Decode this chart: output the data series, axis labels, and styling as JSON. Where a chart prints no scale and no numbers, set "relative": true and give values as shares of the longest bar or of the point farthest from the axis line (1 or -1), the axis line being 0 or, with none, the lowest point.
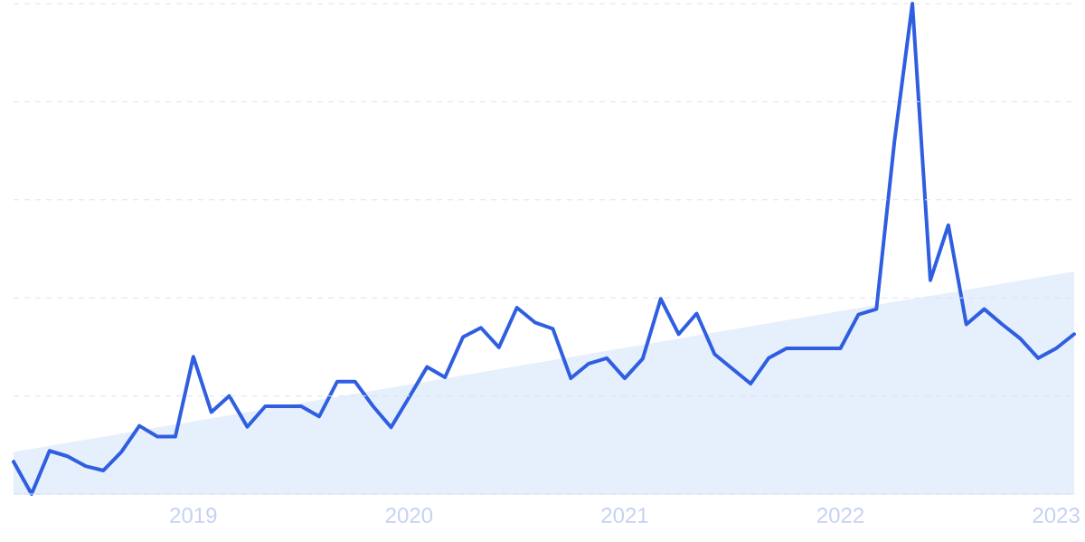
{
  "chart_data": {
    "type": "line",
    "relative": true,
    "grid": "y",
    "x": [
      "2018-03",
      "2018-04",
      "2018-05",
      "2018-06",
      "2018-07",
      "2018-08",
      "2018-09",
      "2018-10",
      "2018-11",
      "2018-12",
      "2019-01",
      "2019-02",
      "2019-03",
      "2019-04",
      "2019-05",
      "2019-06",
      "2019-07",
      "2019-08",
      "2019-09",
      "2019-10",
      "2019-11",
      "2019-12",
      "2020-01",
      "2020-02",
      "2020-03",
      "2020-04",
      "2020-05",
      "2020-06",
      "2020-07",
      "2020-08",
      "2020-09",
      "2020-10",
      "2020-11",
      "2020-12",
      "2021-01",
      "2021-02",
      "2021-03",
      "2021-04",
      "2021-05",
      "2021-06",
      "2021-07",
      "2021-08",
      "2021-09",
      "2021-10",
      "2021-11",
      "2021-12",
      "2022-01",
      "2022-02",
      "2022-03",
      "2022-04",
      "2022-05",
      "2022-06",
      "2022-07",
      "2022-08",
      "2022-09",
      "2022-10",
      "2022-11",
      "2022-12",
      "2023-01",
      "2023-02"
    ],
    "xlim": [
      "2018-03",
      "2023-02"
    ],
    "xticks": [
      "2019",
      "2020",
      "2021",
      "2022",
      "2023"
    ],
    "series": [
      {
        "type": "area",
        "color": "#e6effc",
        "x": [
          "2018-03",
          "2023-02"
        ],
        "values": [
          0.086,
          0.454
        ]
      },
      {
        "color": "#2f5fe0",
        "values": [
          0.066,
          0,
          0.088,
          0.077,
          0.057,
          0.048,
          0.086,
          0.139,
          0.117,
          0.117,
          0.28,
          0.167,
          0.2,
          0.137,
          0.179,
          0.179,
          0.179,
          0.158,
          0.229,
          0.229,
          0.179,
          0.136,
          0.197,
          0.259,
          0.238,
          0.32,
          0.339,
          0.299,
          0.38,
          0.35,
          0.337,
          0.236,
          0.266,
          0.277,
          0.236,
          0.276,
          0.398,
          0.326,
          0.368,
          0.285,
          0.255,
          0.225,
          0.277,
          0.297,
          0.297,
          0.297,
          0.297,
          0.366,
          0.377,
          0.718,
          1,
          0.436,
          0.548,
          0.346,
          0.377,
          0.346,
          0.317,
          0.277,
          0.297,
          0.326
        ]
      }
    ]
  }
}
